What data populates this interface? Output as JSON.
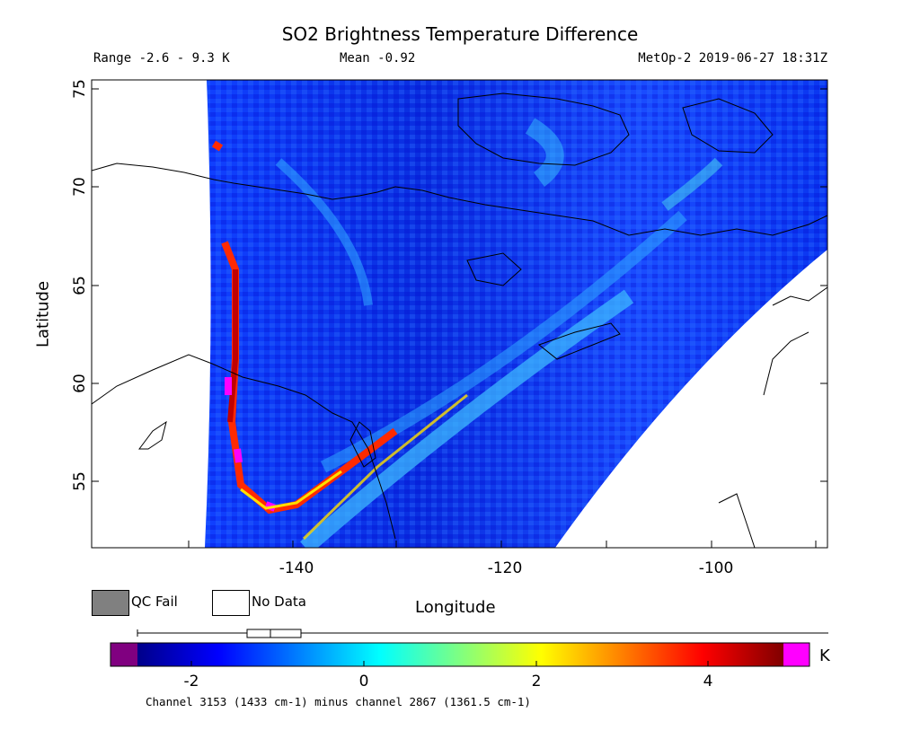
{
  "header": {
    "title": "SO2 Brightness Temperature Difference",
    "range": "Range -2.6 - 9.3 K",
    "mean": "Mean -0.92",
    "satellite_time": "MetOp-2 2019-06-27 18:31Z"
  },
  "axes": {
    "ylabel": "Latitude",
    "xlabel": "Longitude",
    "lat_ticks": [
      "55",
      "60",
      "65",
      "70",
      "75"
    ],
    "lon_ticks": [
      "-140",
      "-120",
      "-100"
    ]
  },
  "legend": {
    "qc_fail_label": "QC Fail",
    "no_data_label": "No Data",
    "qc_fail_color": "#808080",
    "no_data_color": "#ffffff"
  },
  "colorbar": {
    "ticks": [
      "-2",
      "0",
      "2",
      "4"
    ],
    "units": "K",
    "below_color": "#800080",
    "above_color": "#ff00ff",
    "gradient": [
      "#00008a",
      "#0000ff",
      "#0080ff",
      "#00ffff",
      "#80ff80",
      "#ffff00",
      "#ff8000",
      "#ff0000",
      "#800000"
    ]
  },
  "footnote": "Channel 3153 (1433 cm-1) minus channel 2867 (1361.5 cm-1)"
}
